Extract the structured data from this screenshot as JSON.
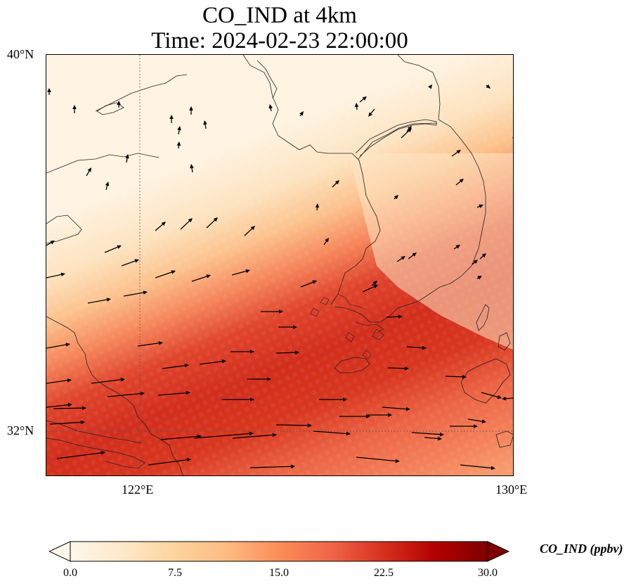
{
  "title_line1": "CO_IND at 4km",
  "title_line2": "Time: 2024-02-23 22:00:00",
  "map": {
    "lat_ticks": [
      "40°N",
      "32°N"
    ],
    "lon_ticks": [
      "122°E",
      "130°E"
    ],
    "extent": {
      "lon_min": 120,
      "lon_max": 130,
      "lat_min": 31,
      "lat_max": 40
    },
    "gridlines": {
      "lon": 122,
      "lat": 32,
      "style": "dotted"
    },
    "field": "CO_IND",
    "colormap": "OrRd",
    "plume": "high concentration band running from the southwest toward the east, maximum over the Yellow Sea / East China Sea north of 32°N",
    "wind": "westerly to southwesterly arrows, longest in the south"
  },
  "colorbar": {
    "label": "CO_IND (ppbv)",
    "ticks": [
      "0.0",
      "7.5",
      "15.0",
      "22.5",
      "30.0"
    ],
    "min": 0,
    "max": 30,
    "extend": "both",
    "colors": [
      "#fff7ec",
      "#fee8c8",
      "#fdd49e",
      "#fdbb84",
      "#fc8d59",
      "#ef6548",
      "#d7301f",
      "#b30000",
      "#7f0000"
    ]
  }
}
